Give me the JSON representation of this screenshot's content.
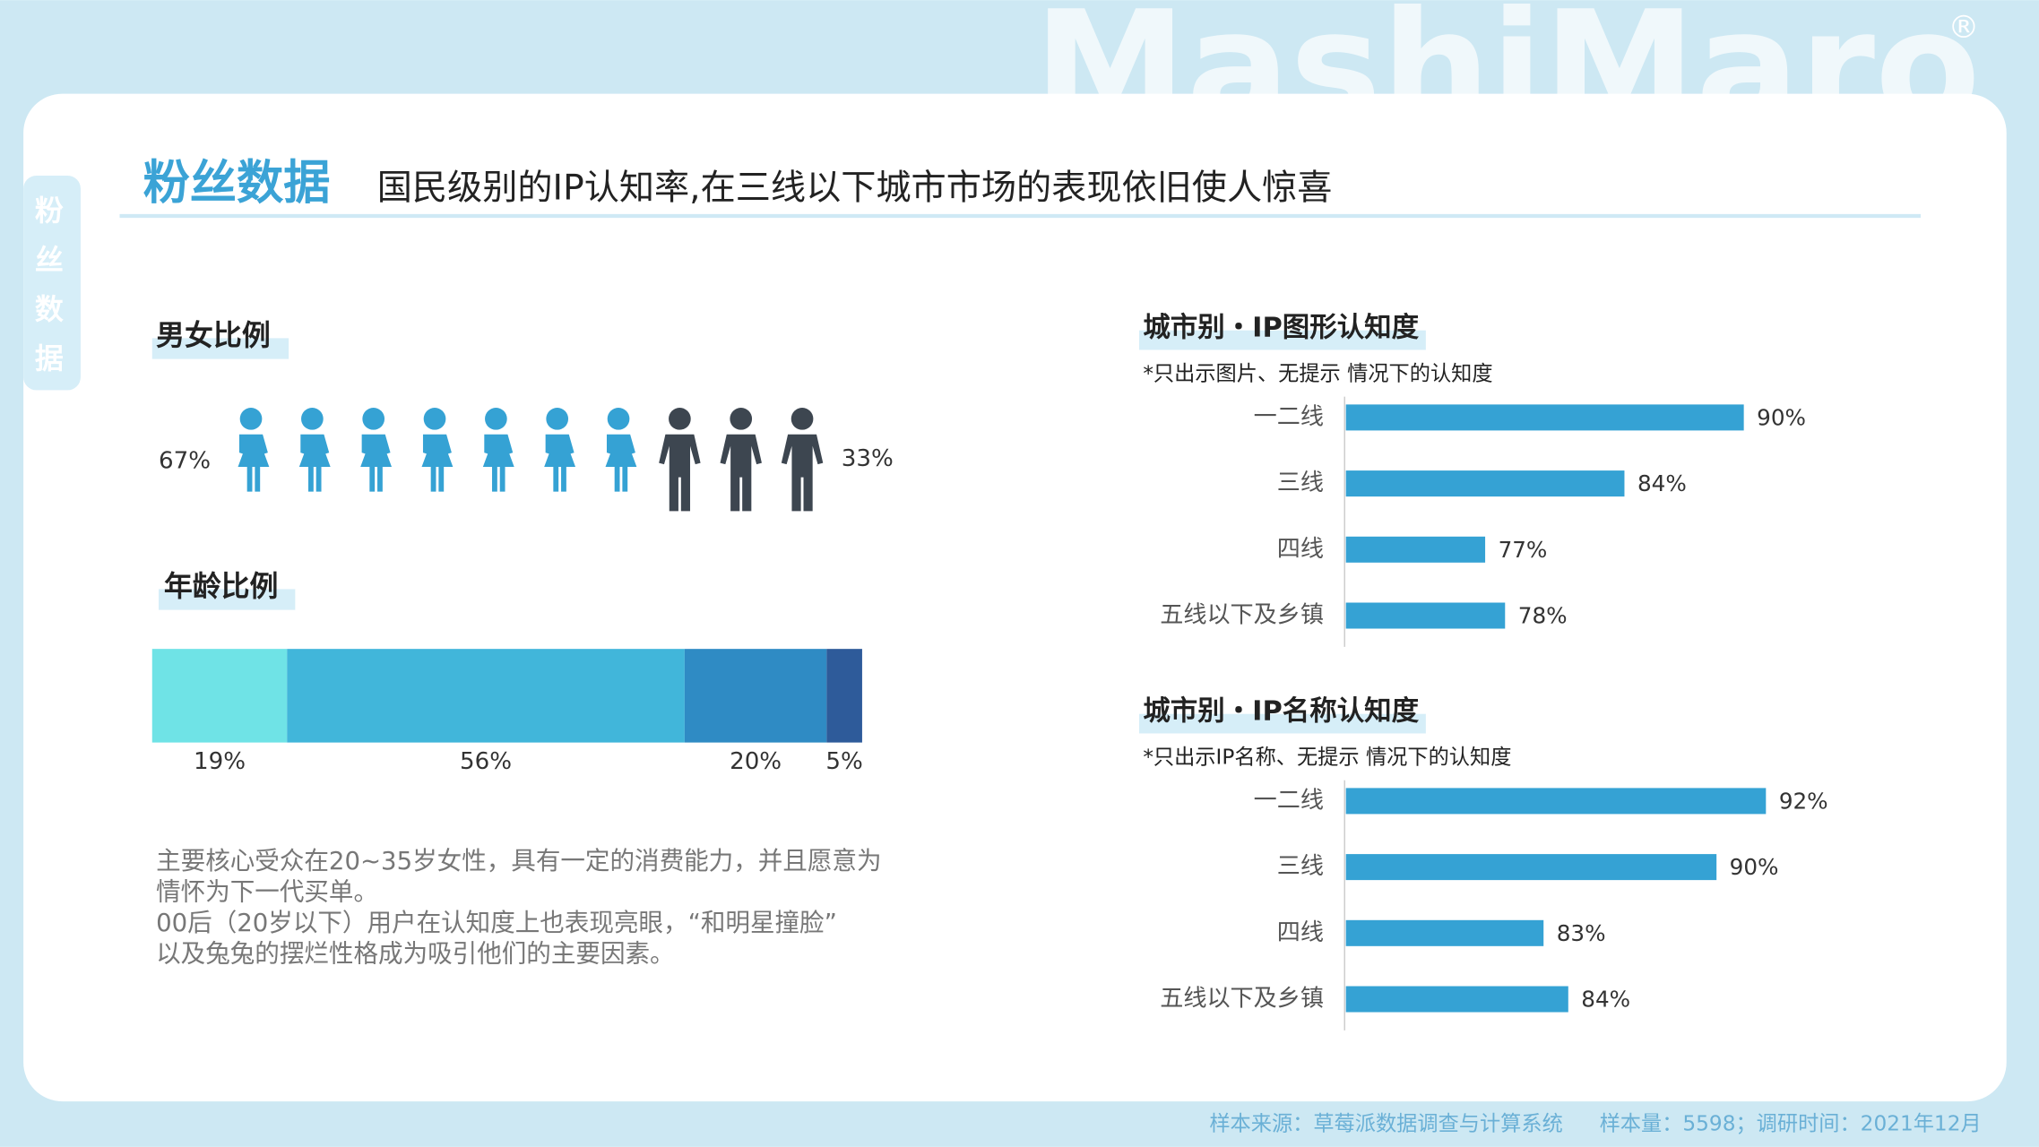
{
  "header": {
    "watermark": "MashiMaro",
    "mark": "®",
    "title": "粉丝数据",
    "subtitle": "国民级别的IP认知率,在三线以下城市市场的表现依旧使人惊喜",
    "side_tab": "粉丝数据"
  },
  "body": {
    "lines": [
      "主要核心受众在20~35岁女性，具有一定的消费能力，并且愿意为",
      "情怀为下一代买单。",
      "00后（20岁以下）用户在认知度上也表现亮眼，“和明星撞脸”",
      "以及兔兔的摆烂性格成为吸引他们的主要因素。"
    ]
  },
  "footer": {
    "source": "样本来源：草莓派数据调查与计算系统",
    "sample": "样本量：5598；调研时间：2021年12月"
  },
  "chart_data": [
    {
      "type": "pictogram",
      "title": "男女比例",
      "values": [
        67,
        33
      ],
      "value_labels": [
        "67%",
        "33%"
      ],
      "colors": [
        "#35a2d4",
        "#3d4650"
      ]
    },
    {
      "type": "stacked-bar",
      "title": "年龄比例",
      "values": [
        19,
        56,
        20,
        5
      ],
      "value_labels": [
        "19%",
        "56%",
        "20%",
        "5%"
      ],
      "colors": [
        "#6fe3e6",
        "#41b6da",
        "#2f8bc4",
        "#2e5b9a"
      ]
    },
    {
      "type": "hbar",
      "title": "城市别・IP图形认知度",
      "subtitle": "*只出示图片、无提示 情况下的认知度",
      "categories": [
        "一二线",
        "三线",
        "四线",
        "五线以下及乡镇"
      ],
      "values": [
        90,
        84,
        77,
        78
      ],
      "value_labels": [
        "90%",
        "84%",
        "77%",
        "78%"
      ],
      "color": "#35a2d4",
      "xlim": [
        70,
        100
      ]
    },
    {
      "type": "hbar",
      "title": "城市别・IP名称认知度",
      "subtitle": "*只出示IP名称、无提示 情况下的认知度",
      "categories": [
        "一二线",
        "三线",
        "四线",
        "五线以下及乡镇"
      ],
      "values": [
        92,
        90,
        83,
        84
      ],
      "value_labels": [
        "92%",
        "90%",
        "83%",
        "84%"
      ],
      "color": "#35a2d4",
      "xlim": [
        75,
        100
      ]
    }
  ]
}
